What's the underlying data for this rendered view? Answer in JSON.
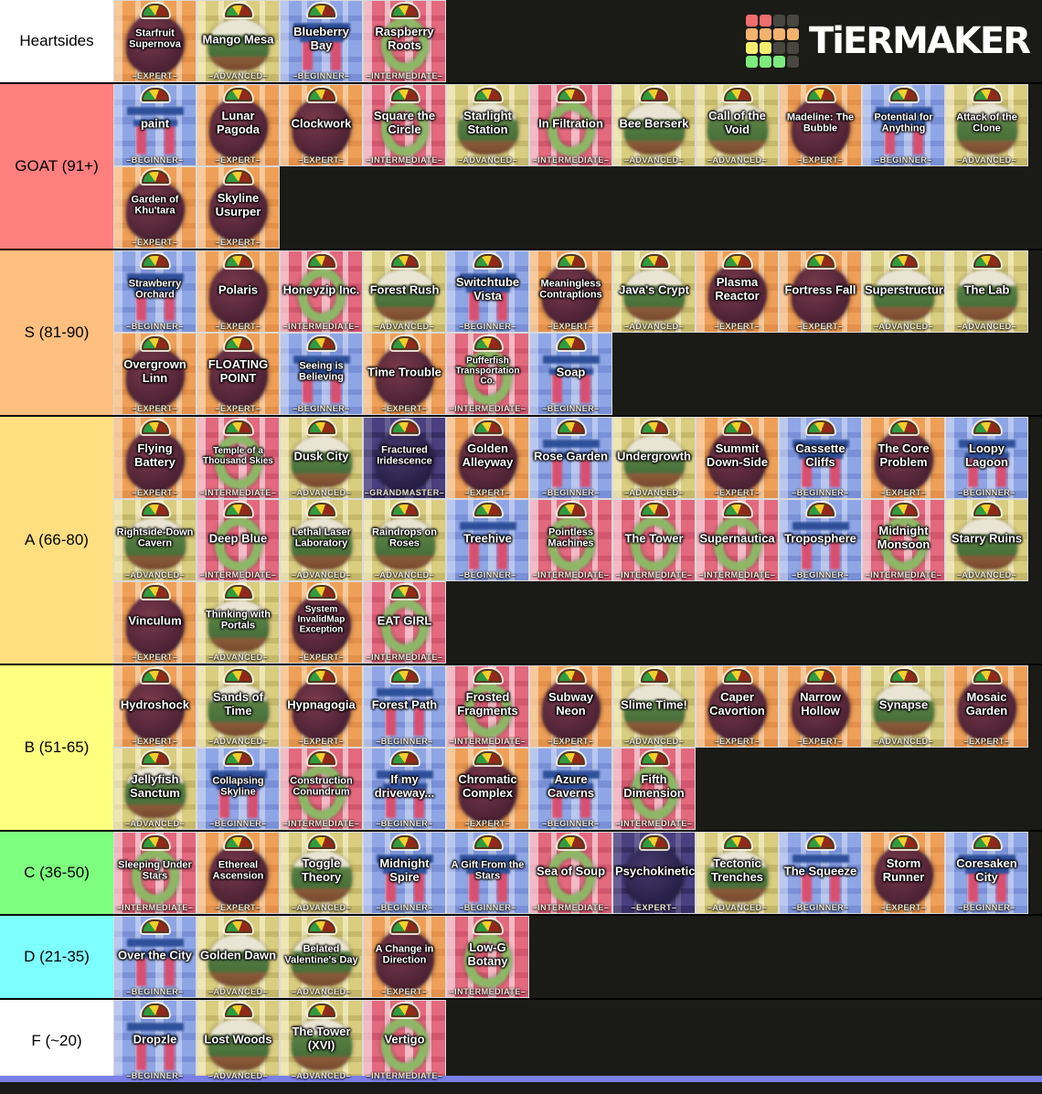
{
  "site": {
    "logo_text": "TiERMAKER",
    "logo_grid_colors": [
      "#ef6e6e",
      "#ef6e6e",
      "#474740",
      "#474740",
      "#f2b36e",
      "#f2b36e",
      "#f2b36e",
      "#f2b36e",
      "#f4ee6d",
      "#f4ee6d",
      "#474740",
      "#474740",
      "#7dea7d",
      "#7dea7d",
      "#7dea7d",
      "#474740"
    ],
    "next_row_strip_color": "#7b7fe8"
  },
  "header_row": {
    "label": "Heartsides",
    "color": "#ffffff",
    "tiles": [
      {
        "name": "Starfruit Supernova",
        "difficulty": "–EXPERT–",
        "theme": "orange"
      },
      {
        "name": "Mango Mesa",
        "difficulty": "–ADVANCED–",
        "theme": "khaki"
      },
      {
        "name": "Blueberry Bay",
        "difficulty": "–BEGINNER–",
        "theme": "blue"
      },
      {
        "name": "Raspberry Roots",
        "difficulty": "–INTERMEDIATE–",
        "theme": "red"
      }
    ]
  },
  "tiers": [
    {
      "label": "GOAT (91+)",
      "color": "#ff7f7e",
      "tiles": [
        {
          "name": "paint",
          "difficulty": "–BEGINNER–",
          "theme": "blue"
        },
        {
          "name": "Lunar Pagoda",
          "difficulty": "–EXPERT–",
          "theme": "orange"
        },
        {
          "name": "Clockwork",
          "difficulty": "–EXPERT–",
          "theme": "orange"
        },
        {
          "name": "Square the Circle",
          "difficulty": "–INTERMEDIATE–",
          "theme": "red"
        },
        {
          "name": "Starlight Station",
          "difficulty": "–ADVANCED–",
          "theme": "khaki"
        },
        {
          "name": "In Filtration",
          "difficulty": "–INTERMEDIATE–",
          "theme": "red"
        },
        {
          "name": "Bee Berserk",
          "difficulty": "–ADVANCED–",
          "theme": "khaki"
        },
        {
          "name": "Call of the Void",
          "difficulty": "–ADVANCED–",
          "theme": "khaki"
        },
        {
          "name": "Madeline: The Bubble",
          "difficulty": "–EXPERT–",
          "theme": "orange"
        },
        {
          "name": "Potential for Anything",
          "difficulty": "–BEGINNER–",
          "theme": "blue"
        },
        {
          "name": "Attack of the Clone",
          "difficulty": "–ADVANCED–",
          "theme": "khaki"
        },
        {
          "name": "Garden of Khu'tara",
          "difficulty": "–EXPERT–",
          "theme": "orange"
        },
        {
          "name": "Skyline Usurper",
          "difficulty": "–EXPERT–",
          "theme": "orange"
        }
      ]
    },
    {
      "label": "S (81-90)",
      "color": "#ffbf7e",
      "tiles": [
        {
          "name": "Strawberry Orchard",
          "difficulty": "–BEGINNER–",
          "theme": "blue"
        },
        {
          "name": "Polaris",
          "difficulty": "–EXPERT–",
          "theme": "orange"
        },
        {
          "name": "Honeyzip Inc.",
          "difficulty": "–INTERMEDIATE–",
          "theme": "red"
        },
        {
          "name": "Forest Rush",
          "difficulty": "–ADVANCED–",
          "theme": "khaki"
        },
        {
          "name": "Switchtube Vista",
          "difficulty": "–BEGINNER–",
          "theme": "blue"
        },
        {
          "name": "Meaningless Contraptions",
          "difficulty": "–EXPERT–",
          "theme": "orange"
        },
        {
          "name": "Java's Crypt",
          "difficulty": "–ADVANCED–",
          "theme": "khaki"
        },
        {
          "name": "Plasma Reactor",
          "difficulty": "–EXPERT–",
          "theme": "orange"
        },
        {
          "name": "Fortress Fall",
          "difficulty": "–EXPERT–",
          "theme": "orange"
        },
        {
          "name": "Superstructure",
          "difficulty": "–ADVANCED–",
          "theme": "khaki"
        },
        {
          "name": "The Lab",
          "difficulty": "–ADVANCED–",
          "theme": "khaki"
        },
        {
          "name": "Overgrown Linn",
          "difficulty": "–EXPERT–",
          "theme": "orange"
        },
        {
          "name": "FLOATING POINT",
          "difficulty": "–EXPERT–",
          "theme": "orange"
        },
        {
          "name": "Seeing is Believing",
          "difficulty": "–BEGINNER–",
          "theme": "blue"
        },
        {
          "name": "Time Trouble",
          "difficulty": "–EXPERT–",
          "theme": "orange"
        },
        {
          "name": "Pufferfish Transportation Co.",
          "difficulty": "–INTERMEDIATE–",
          "theme": "red"
        },
        {
          "name": "Soap",
          "difficulty": "–BEGINNER–",
          "theme": "blue"
        }
      ]
    },
    {
      "label": "A (66-80)",
      "color": "#ffdf80",
      "tiles": [
        {
          "name": "Flying Battery",
          "difficulty": "–EXPERT–",
          "theme": "orange"
        },
        {
          "name": "Temple of a Thousand Skies",
          "difficulty": "–INTERMEDIATE–",
          "theme": "red"
        },
        {
          "name": "Dusk City",
          "difficulty": "–ADVANCED–",
          "theme": "khaki"
        },
        {
          "name": "Fractured Iridescence",
          "difficulty": "–GRANDMASTER–",
          "theme": "purple"
        },
        {
          "name": "Golden Alleyway",
          "difficulty": "–EXPERT–",
          "theme": "orange"
        },
        {
          "name": "Rose Garden",
          "difficulty": "–BEGINNER–",
          "theme": "blue"
        },
        {
          "name": "Undergrowth",
          "difficulty": "–ADVANCED–",
          "theme": "khaki"
        },
        {
          "name": "Summit Down-Side",
          "difficulty": "–EXPERT–",
          "theme": "orange"
        },
        {
          "name": "Cassette Cliffs",
          "difficulty": "–BEGINNER–",
          "theme": "blue"
        },
        {
          "name": "The Core Problem",
          "difficulty": "–EXPERT–",
          "theme": "orange"
        },
        {
          "name": "Loopy Lagoon",
          "difficulty": "–BEGINNER–",
          "theme": "blue"
        },
        {
          "name": "Rightside-Down Cavern",
          "difficulty": "–ADVANCED–",
          "theme": "khaki"
        },
        {
          "name": "Deep Blue",
          "difficulty": "–INTERMEDIATE–",
          "theme": "red"
        },
        {
          "name": "Lethal Laser Laboratory",
          "difficulty": "–ADVANCED–",
          "theme": "khaki"
        },
        {
          "name": "Raindrops on Roses",
          "difficulty": "–ADVANCED–",
          "theme": "khaki"
        },
        {
          "name": "Treehive",
          "difficulty": "–BEGINNER–",
          "theme": "blue"
        },
        {
          "name": "Pointless Machines",
          "difficulty": "–INTERMEDIATE–",
          "theme": "red"
        },
        {
          "name": "The Tower",
          "difficulty": "–INTERMEDIATE–",
          "theme": "red"
        },
        {
          "name": "Supernautica",
          "difficulty": "–INTERMEDIATE–",
          "theme": "red"
        },
        {
          "name": "Troposphere",
          "difficulty": "–BEGINNER–",
          "theme": "blue"
        },
        {
          "name": "Midnight Monsoon",
          "difficulty": "–INTERMEDIATE–",
          "theme": "red"
        },
        {
          "name": "Starry Ruins",
          "difficulty": "–ADVANCED–",
          "theme": "khaki"
        },
        {
          "name": "Vinculum",
          "difficulty": "–EXPERT–",
          "theme": "orange"
        },
        {
          "name": "Thinking with Portals",
          "difficulty": "–ADVANCED–",
          "theme": "khaki"
        },
        {
          "name": "System InvalidMap Exception",
          "difficulty": "–EXPERT–",
          "theme": "orange"
        },
        {
          "name": "EAT GIRL",
          "difficulty": "–INTERMEDIATE–",
          "theme": "red"
        }
      ]
    },
    {
      "label": "B (51-65)",
      "color": "#fdff7e",
      "tiles": [
        {
          "name": "Hydroshock",
          "difficulty": "–EXPERT–",
          "theme": "orange"
        },
        {
          "name": "Sands of Time",
          "difficulty": "–ADVANCED–",
          "theme": "khaki"
        },
        {
          "name": "Hypnagogia",
          "difficulty": "–EXPERT–",
          "theme": "orange"
        },
        {
          "name": "Forest Path",
          "difficulty": "–BEGINNER–",
          "theme": "blue"
        },
        {
          "name": "Frosted Fragments",
          "difficulty": "–INTERMEDIATE–",
          "theme": "red"
        },
        {
          "name": "Subway Neon",
          "difficulty": "–EXPERT–",
          "theme": "orange"
        },
        {
          "name": "Slime Time!",
          "difficulty": "–ADVANCED–",
          "theme": "khaki"
        },
        {
          "name": "Caper Cavortion",
          "difficulty": "–EXPERT–",
          "theme": "orange"
        },
        {
          "name": "Narrow Hollow",
          "difficulty": "–EXPERT–",
          "theme": "orange"
        },
        {
          "name": "Synapse",
          "difficulty": "–ADVANCED–",
          "theme": "khaki"
        },
        {
          "name": "Mosaic Garden",
          "difficulty": "–EXPERT–",
          "theme": "orange"
        },
        {
          "name": "Jellyfish Sanctum",
          "difficulty": "–ADVANCED–",
          "theme": "khaki"
        },
        {
          "name": "Collapsing Skyline",
          "difficulty": "–BEGINNER–",
          "theme": "blue"
        },
        {
          "name": "Construction Conundrum",
          "difficulty": "–INTERMEDIATE–",
          "theme": "red"
        },
        {
          "name": "If my driveway...",
          "difficulty": "–BEGINNER–",
          "theme": "blue"
        },
        {
          "name": "Chromatic Complex",
          "difficulty": "–EXPERT–",
          "theme": "orange"
        },
        {
          "name": "Azure Caverns",
          "difficulty": "–BEGINNER–",
          "theme": "blue"
        },
        {
          "name": "Fifth Dimension",
          "difficulty": "–INTERMEDIATE–",
          "theme": "red"
        }
      ]
    },
    {
      "label": "C (36-50)",
      "color": "#7eff80",
      "tiles": [
        {
          "name": "Sleeping Under Stars",
          "difficulty": "–INTERMEDIATE–",
          "theme": "red"
        },
        {
          "name": "Ethereal Ascension",
          "difficulty": "–EXPERT–",
          "theme": "orange"
        },
        {
          "name": "Toggle Theory",
          "difficulty": "–ADVANCED–",
          "theme": "khaki"
        },
        {
          "name": "Midnight Spire",
          "difficulty": "–BEGINNER–",
          "theme": "blue"
        },
        {
          "name": "A Gift From the Stars",
          "difficulty": "–BEGINNER–",
          "theme": "blue"
        },
        {
          "name": "Sea of Soup",
          "difficulty": "–INTERMEDIATE–",
          "theme": "red"
        },
        {
          "name": "Psychokinetic",
          "difficulty": "–EXPERT–",
          "theme": "purple"
        },
        {
          "name": "Tectonic Trenches",
          "difficulty": "–ADVANCED–",
          "theme": "khaki"
        },
        {
          "name": "The Squeeze",
          "difficulty": "–BEGINNER–",
          "theme": "blue"
        },
        {
          "name": "Storm Runner",
          "difficulty": "–EXPERT–",
          "theme": "orange"
        },
        {
          "name": "Coresaken City",
          "difficulty": "–BEGINNER–",
          "theme": "blue"
        }
      ]
    },
    {
      "label": "D (21-35)",
      "color": "#7effff",
      "tiles": [
        {
          "name": "Over the City",
          "difficulty": "–BEGINNER–",
          "theme": "blue"
        },
        {
          "name": "Golden Dawn",
          "difficulty": "–ADVANCED–",
          "theme": "khaki"
        },
        {
          "name": "Belated Valentine's Day",
          "difficulty": "–ADVANCED–",
          "theme": "khaki"
        },
        {
          "name": "A Change in Direction",
          "difficulty": "–EXPERT–",
          "theme": "orange"
        },
        {
          "name": "Low-G Botany",
          "difficulty": "–INTERMEDIATE–",
          "theme": "red"
        }
      ]
    },
    {
      "label": "F (~20)",
      "color": "#ffffff",
      "tiles": [
        {
          "name": "Dropzle",
          "difficulty": "–BEGINNER–",
          "theme": "blue"
        },
        {
          "name": "Lost Woods",
          "difficulty": "–ADVANCED–",
          "theme": "khaki"
        },
        {
          "name": "The Tower (XVI)",
          "difficulty": "–ADVANCED–",
          "theme": "khaki"
        },
        {
          "name": "Vertigo",
          "difficulty": "–INTERMEDIATE–",
          "theme": "red"
        }
      ]
    }
  ]
}
